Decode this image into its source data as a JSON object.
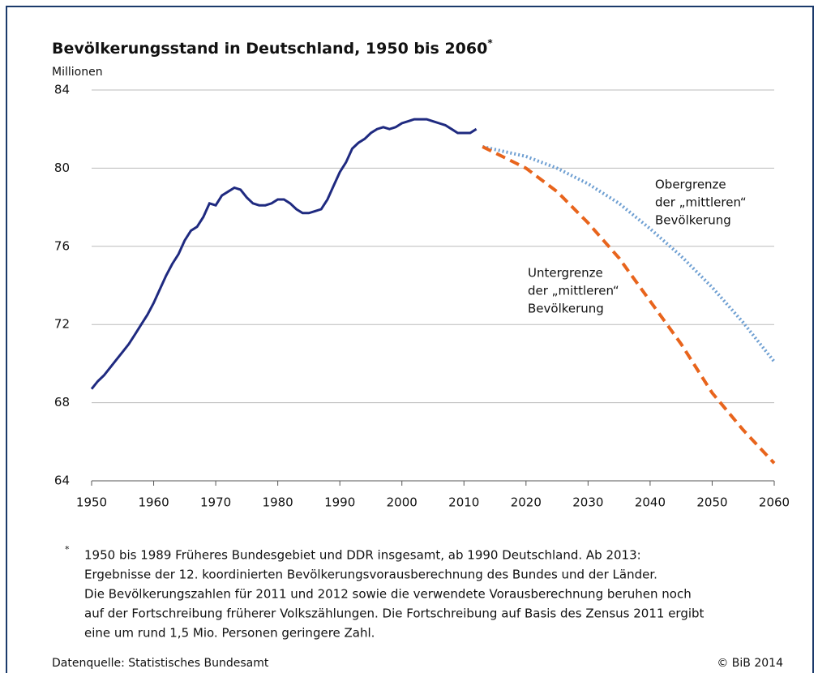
{
  "chart_data": {
    "type": "line",
    "title": "Bevölkerungsstand in Deutschland, 1950 bis 2060",
    "title_mark": "*",
    "y_label": "Millionen",
    "xlim": [
      1950,
      2060
    ],
    "xticks": [
      1950,
      1960,
      1970,
      1980,
      1990,
      2000,
      2010,
      2020,
      2030,
      2040,
      2050,
      2060
    ],
    "ylim": [
      64,
      84
    ],
    "yticks": [
      64,
      68,
      72,
      76,
      80,
      84
    ],
    "grid": true,
    "series": [
      {
        "name": "Bevölkerungsstand",
        "color": "#1f2a80",
        "style": "solid",
        "x": [
          1950,
          1951,
          1952,
          1953,
          1954,
          1955,
          1956,
          1957,
          1958,
          1959,
          1960,
          1961,
          1962,
          1963,
          1964,
          1965,
          1966,
          1967,
          1968,
          1969,
          1970,
          1971,
          1972,
          1973,
          1974,
          1975,
          1976,
          1977,
          1978,
          1979,
          1980,
          1981,
          1982,
          1983,
          1984,
          1985,
          1986,
          1987,
          1988,
          1989,
          1990,
          1991,
          1992,
          1993,
          1994,
          1995,
          1996,
          1997,
          1998,
          1999,
          2000,
          2001,
          2002,
          2003,
          2004,
          2005,
          2006,
          2007,
          2008,
          2009,
          2010,
          2011,
          2012
        ],
        "values": [
          68.7,
          69.1,
          69.4,
          69.8,
          70.2,
          70.6,
          71.0,
          71.5,
          72.0,
          72.5,
          73.1,
          73.8,
          74.5,
          75.1,
          75.6,
          76.3,
          76.8,
          77.0,
          77.5,
          78.2,
          78.1,
          78.6,
          78.8,
          79.0,
          78.9,
          78.5,
          78.2,
          78.1,
          78.1,
          78.2,
          78.4,
          78.4,
          78.2,
          77.9,
          77.7,
          77.7,
          77.8,
          77.9,
          78.4,
          79.1,
          79.8,
          80.3,
          81.0,
          81.3,
          81.5,
          81.8,
          82.0,
          82.1,
          82.0,
          82.1,
          82.3,
          82.4,
          82.5,
          82.5,
          82.5,
          82.4,
          82.3,
          82.2,
          82.0,
          81.8,
          81.8,
          81.8,
          82.0
        ]
      },
      {
        "name": "Obergrenze",
        "color": "#6e9fd2",
        "style": "dotted",
        "x": [
          2013,
          2020,
          2025,
          2030,
          2035,
          2040,
          2045,
          2050,
          2055,
          2060
        ],
        "values": [
          81.1,
          80.6,
          80.0,
          79.2,
          78.2,
          76.9,
          75.5,
          73.9,
          72.1,
          70.1
        ]
      },
      {
        "name": "Untergrenze",
        "color": "#e8641c",
        "style": "dashed",
        "x": [
          2013,
          2020,
          2025,
          2030,
          2035,
          2040,
          2045,
          2050,
          2055,
          2060
        ],
        "values": [
          81.1,
          80.0,
          78.8,
          77.2,
          75.4,
          73.2,
          71.0,
          68.5,
          66.6,
          64.9
        ]
      }
    ],
    "annotations": [
      {
        "lines": [
          "Obergrenze",
          "der „mittleren“",
          "Bevölkerung"
        ]
      },
      {
        "lines": [
          "Untergrenze",
          "der „mittleren“",
          "Bevölkerung"
        ]
      }
    ],
    "footnote_mark": "*",
    "footnote": [
      "1950 bis 1989 Früheres Bundesgebiet und DDR insgesamt, ab 1990 Deutschland. Ab 2013:",
      "Ergebnisse der 12. koordinierten Bevölkerungsvorausberechnung des Bundes und der Länder.",
      "Die Bevölkerungszahlen für 2011 und 2012 sowie die verwendete Vorausberechnung beruhen noch",
      "auf der Fortschreibung früherer Volkszählungen. Die Fortschreibung auf Basis des Zensus 2011 ergibt",
      "eine um rund 1,5 Mio. Personen geringere Zahl."
    ],
    "source": "Datenquelle: Statistisches Bundesamt",
    "copyright": "© BiB 2014"
  }
}
